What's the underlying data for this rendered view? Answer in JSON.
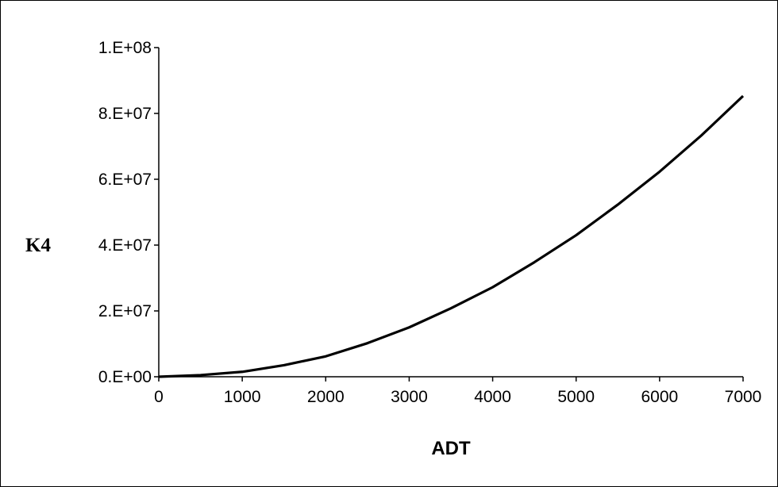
{
  "chart_data": {
    "type": "line",
    "title": "",
    "xlabel": "ADT",
    "ylabel": "K4",
    "xlim": [
      0,
      7000
    ],
    "ylim": [
      0,
      100000000
    ],
    "x_ticks": [
      0,
      1000,
      2000,
      3000,
      4000,
      5000,
      6000,
      7000
    ],
    "x_tick_labels": [
      "0",
      "1000",
      "2000",
      "3000",
      "4000",
      "5000",
      "6000",
      "7000"
    ],
    "y_ticks": [
      0,
      20000000,
      40000000,
      60000000,
      80000000,
      100000000
    ],
    "y_tick_labels": [
      "0.E+00",
      "2.E+07",
      "4.E+07",
      "6.E+07",
      "8.E+07",
      "1.E+08"
    ],
    "grid": false,
    "legend": "none",
    "line_color": "#000000",
    "series": [
      {
        "x": [
          0,
          500,
          1000,
          1500,
          2000,
          2500,
          3000,
          3500,
          4000,
          4500,
          5000,
          5500,
          6000,
          6500,
          7000
        ],
        "y": [
          0,
          500000,
          1500000,
          3500000,
          6200000,
          10200000,
          15000000,
          20800000,
          27200000,
          34800000,
          43000000,
          52300000,
          62300000,
          73300000,
          85300000
        ]
      }
    ]
  }
}
